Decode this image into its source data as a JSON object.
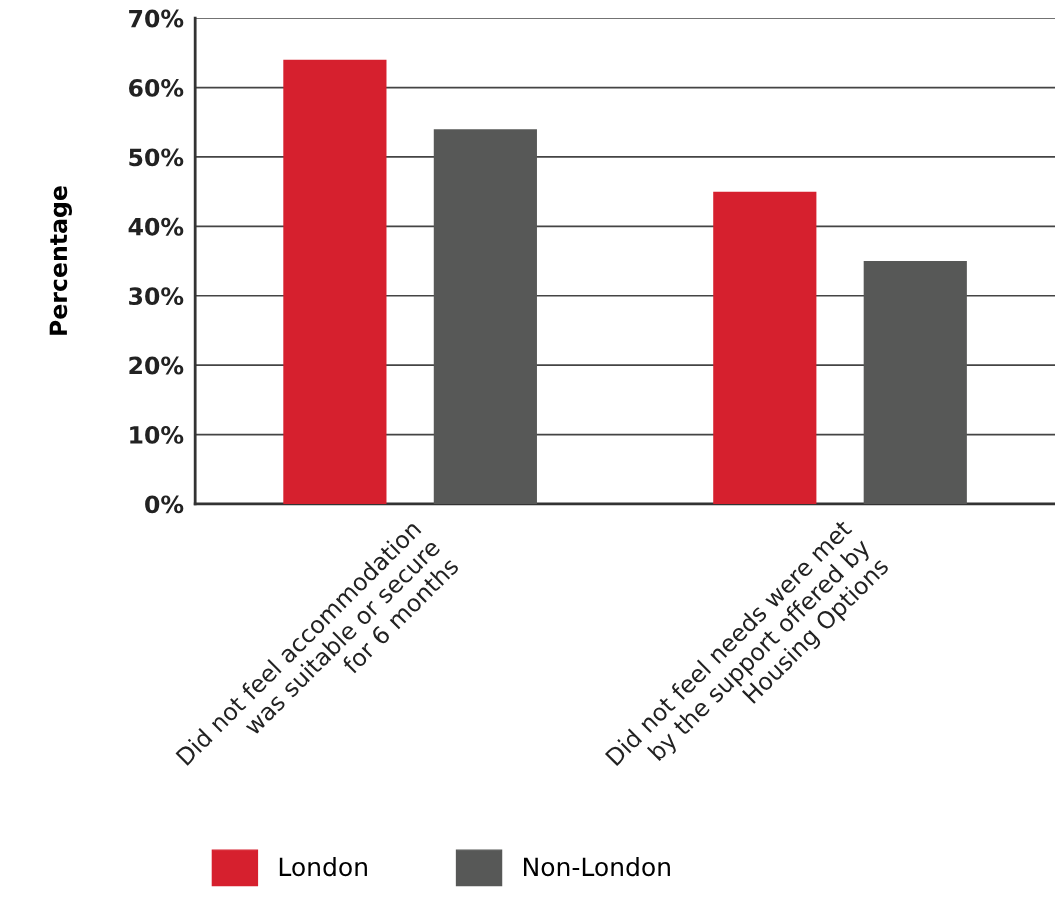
{
  "chart_data": {
    "type": "bar",
    "ylabel": "Percentage",
    "categories": [
      "Did not feel accommodation\nwas suitable or secure\nfor 6 months",
      "Did not feel needs were met\nby the support offered by\nHousing Options"
    ],
    "series": [
      {
        "name": "London",
        "color": "#d6202e",
        "values": [
          64,
          45
        ]
      },
      {
        "name": "Non-London",
        "color": "#575857",
        "values": [
          54,
          35
        ]
      }
    ],
    "ylim": [
      0,
      70
    ],
    "yticks": [
      {
        "value": 0,
        "label": "0%"
      },
      {
        "value": 10,
        "label": "10%"
      },
      {
        "value": 20,
        "label": "20%"
      },
      {
        "value": 30,
        "label": "30%"
      },
      {
        "value": 40,
        "label": "40%"
      },
      {
        "value": 50,
        "label": "50%"
      },
      {
        "value": 60,
        "label": "60%"
      },
      {
        "value": 70,
        "label": "70%"
      }
    ],
    "grid": "y",
    "legend": "bottom"
  }
}
